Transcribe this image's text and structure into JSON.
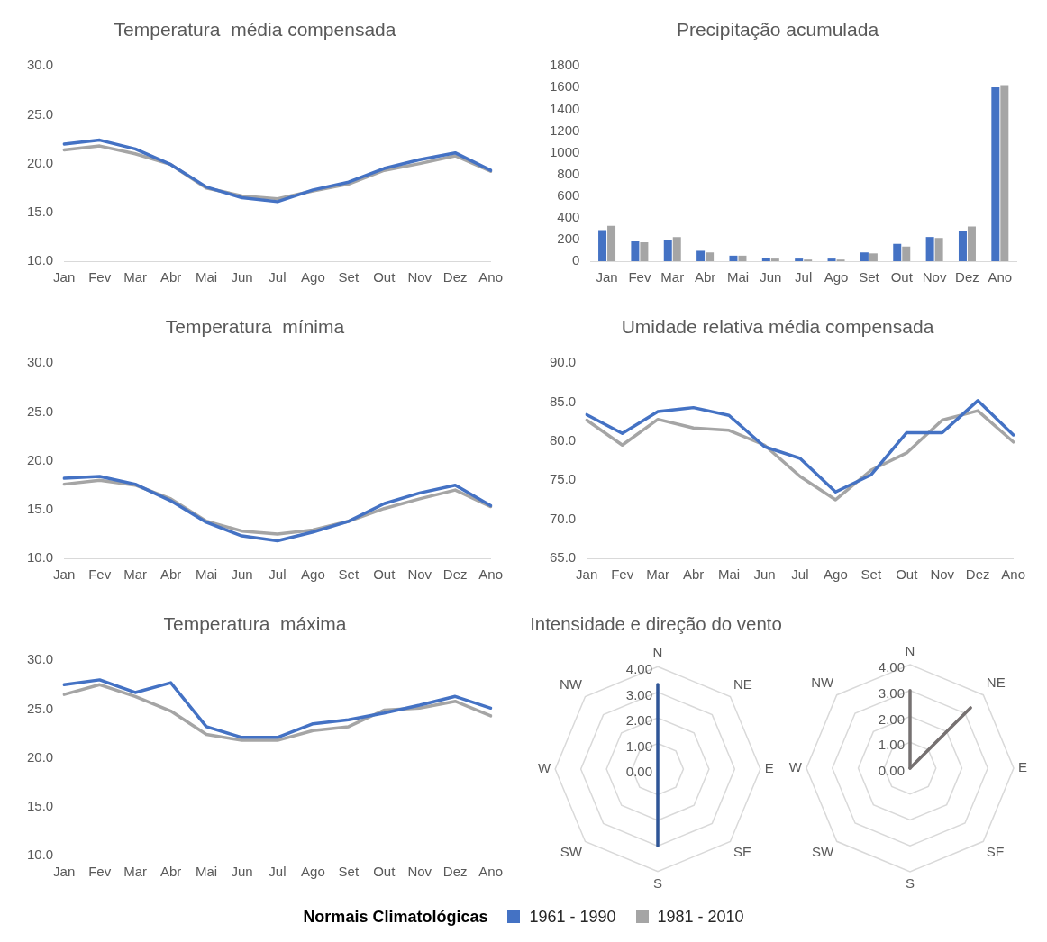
{
  "chart_data": [
    {
      "type": "line",
      "title": "Temperatura  média compensada",
      "categories": [
        "Jan",
        "Fev",
        "Mar",
        "Abr",
        "Mai",
        "Jun",
        "Jul",
        "Ago",
        "Set",
        "Out",
        "Nov",
        "Dez",
        "Ano"
      ],
      "ylim": [
        10,
        30
      ],
      "yticks": [
        {
          "value": 10,
          "label": "10.0"
        },
        {
          "value": 15,
          "label": "15.0"
        },
        {
          "value": 20,
          "label": "20.0"
        },
        {
          "value": 25,
          "label": "25.0"
        },
        {
          "value": 30,
          "label": "30.0"
        }
      ],
      "grid": false,
      "legend": "bottom",
      "legend_title": "Normais Climatológicas",
      "series": [
        {
          "name": "1961 - 1990",
          "color": "#4472c4",
          "values": [
            22.0,
            22.4,
            21.5,
            19.9,
            17.6,
            16.5,
            16.1,
            17.3,
            18.1,
            19.5,
            20.4,
            21.1,
            19.3
          ]
        },
        {
          "name": "1981 - 2010",
          "color": "#a5a5a5",
          "values": [
            21.4,
            21.8,
            21.0,
            19.9,
            17.5,
            16.7,
            16.4,
            17.2,
            17.9,
            19.3,
            20.0,
            20.8,
            19.2
          ]
        }
      ]
    },
    {
      "type": "bar",
      "title": "Precipitação acumulada",
      "categories": [
        "Jan",
        "Fev",
        "Mar",
        "Abr",
        "Mai",
        "Jun",
        "Jul",
        "Ago",
        "Set",
        "Out",
        "Nov",
        "Dez",
        "Ano"
      ],
      "ylim": [
        0,
        1800
      ],
      "yticks": [
        0,
        200,
        400,
        600,
        800,
        1000,
        1200,
        1400,
        1600,
        1800
      ],
      "grid": false,
      "series": [
        {
          "color": "#4472c4",
          "values": [
            286,
            183,
            193,
            96,
            51,
            33,
            24,
            24,
            81,
            160,
            223,
            280,
            1602
          ]
        },
        {
          "color": "#a5a5a5",
          "values": [
            325,
            174,
            223,
            81,
            51,
            24,
            15,
            15,
            72,
            135,
            214,
            319,
            1623
          ]
        }
      ]
    },
    {
      "type": "line",
      "title": "Temperatura  mínima",
      "categories": [
        "Jan",
        "Fev",
        "Mar",
        "Abr",
        "Mai",
        "Jun",
        "Jul",
        "Ago",
        "Set",
        "Out",
        "Nov",
        "Dez",
        "Ano"
      ],
      "ylim": [
        10,
        30
      ],
      "yticks": [
        {
          "value": 10,
          "label": "10.0"
        },
        {
          "value": 15,
          "label": "15.0"
        },
        {
          "value": 20,
          "label": "20.0"
        },
        {
          "value": 25,
          "label": "25.0"
        },
        {
          "value": 30,
          "label": "30.0"
        }
      ],
      "grid": false,
      "series": [
        {
          "color": "#4472c4",
          "values": [
            18.2,
            18.4,
            17.6,
            15.9,
            13.7,
            12.3,
            11.8,
            12.7,
            13.8,
            15.6,
            16.7,
            17.5,
            15.4
          ]
        },
        {
          "color": "#a5a5a5",
          "values": [
            17.6,
            18.0,
            17.5,
            16.1,
            13.8,
            12.8,
            12.5,
            12.9,
            13.8,
            15.1,
            16.1,
            17.0,
            15.3
          ]
        }
      ]
    },
    {
      "type": "line",
      "title": "Umidade relativa média compensada",
      "categories": [
        "Jan",
        "Fev",
        "Mar",
        "Abr",
        "Mai",
        "Jun",
        "Jul",
        "Ago",
        "Set",
        "Out",
        "Nov",
        "Dez",
        "Ano"
      ],
      "ylim": [
        65,
        90
      ],
      "yticks": [
        {
          "value": 65,
          "label": "65.0"
        },
        {
          "value": 70,
          "label": "70.0"
        },
        {
          "value": 75,
          "label": "75.0"
        },
        {
          "value": 80,
          "label": "80.0"
        },
        {
          "value": 85,
          "label": "85.0"
        },
        {
          "value": 90,
          "label": "90.0"
        }
      ],
      "grid": false,
      "series": [
        {
          "color": "#4472c4",
          "values": [
            83.4,
            81.0,
            83.8,
            84.3,
            83.3,
            79.3,
            77.8,
            73.5,
            75.7,
            81.1,
            81.1,
            85.2,
            80.8
          ]
        },
        {
          "color": "#a5a5a5",
          "values": [
            82.7,
            79.5,
            82.8,
            81.7,
            81.4,
            79.5,
            75.5,
            72.5,
            76.3,
            78.5,
            82.7,
            83.9,
            79.9
          ]
        }
      ]
    },
    {
      "type": "line",
      "title": "Temperatura  máxima",
      "categories": [
        "Jan",
        "Fev",
        "Mar",
        "Abr",
        "Mai",
        "Jun",
        "Jul",
        "Ago",
        "Set",
        "Out",
        "Nov",
        "Dez",
        "Ano"
      ],
      "ylim": [
        10,
        30
      ],
      "yticks": [
        {
          "value": 10,
          "label": "10.0"
        },
        {
          "value": 15,
          "label": "15.0"
        },
        {
          "value": 20,
          "label": "20.0"
        },
        {
          "value": 25,
          "label": "25.0"
        },
        {
          "value": 30,
          "label": "30.0"
        }
      ],
      "grid": false,
      "series": [
        {
          "color": "#4472c4",
          "values": [
            27.5,
            28.0,
            26.7,
            27.7,
            23.2,
            22.1,
            22.1,
            23.5,
            23.9,
            24.6,
            25.4,
            26.3,
            25.1
          ]
        },
        {
          "color": "#a5a5a5",
          "values": [
            26.5,
            27.5,
            26.3,
            24.8,
            22.4,
            21.8,
            21.8,
            22.8,
            23.2,
            24.9,
            25.1,
            25.8,
            24.3
          ]
        }
      ]
    },
    {
      "type": "radar",
      "title": "Intensidade e direção do vento",
      "categories": [
        "N",
        "NE",
        "E",
        "SE",
        "S",
        "SW",
        "W",
        "NW"
      ],
      "ylim": [
        0,
        4
      ],
      "yticks": [
        {
          "value": 0,
          "label": "0.00"
        },
        {
          "value": 1,
          "label": "1.00"
        },
        {
          "value": 2,
          "label": "2.00"
        },
        {
          "value": 3,
          "label": "3.00"
        },
        {
          "value": 4,
          "label": "4.00"
        }
      ],
      "grid": true,
      "series": [
        {
          "color": "#2f5597",
          "values": [
            3.3,
            0,
            0,
            0,
            3.0,
            0,
            0,
            0
          ]
        }
      ]
    },
    {
      "type": "radar",
      "categories": [
        "N",
        "NE",
        "E",
        "SE",
        "S",
        "SW",
        "W",
        "NW"
      ],
      "ylim": [
        0,
        4
      ],
      "yticks": [
        {
          "value": 0,
          "label": "0.00"
        },
        {
          "value": 1,
          "label": "1.00"
        },
        {
          "value": 2,
          "label": "2.00"
        },
        {
          "value": 3,
          "label": "3.00"
        },
        {
          "value": 4,
          "label": "4.00"
        }
      ],
      "grid": true,
      "series": [
        {
          "color": "#767171",
          "values": [
            3.0,
            0,
            0,
            0,
            0,
            0,
            0,
            0
          ]
        },
        {
          "color": "#767171",
          "values": [
            0,
            3.3,
            0,
            0,
            0,
            0,
            0,
            0
          ]
        }
      ]
    }
  ]
}
